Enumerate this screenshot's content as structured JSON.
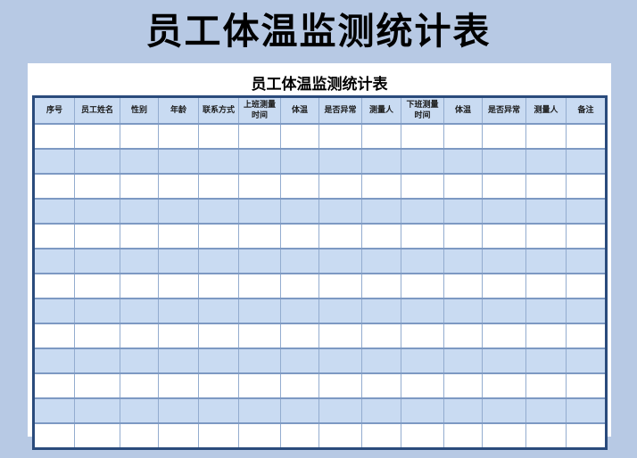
{
  "page": {
    "title": "员工体温监测统计表"
  },
  "panel": {
    "title": "员工体温监测统计表"
  },
  "table": {
    "columns": [
      "序号",
      "员工姓名",
      "性别",
      "年龄",
      "联系方式",
      "上班测量时间",
      "体温",
      "是否异常",
      "测量人",
      "下班测量时间",
      "体温",
      "是否异常",
      "测量人",
      "备注"
    ],
    "empty_row_count": 13,
    "cell_values": ""
  },
  "colors": {
    "page_background": "#b7c9e4",
    "band_fill": "#c9dbf2",
    "grid_line": "#93accf",
    "grid_line_strong": "#7d99c3",
    "outer_border": "#2a4b7c"
  }
}
